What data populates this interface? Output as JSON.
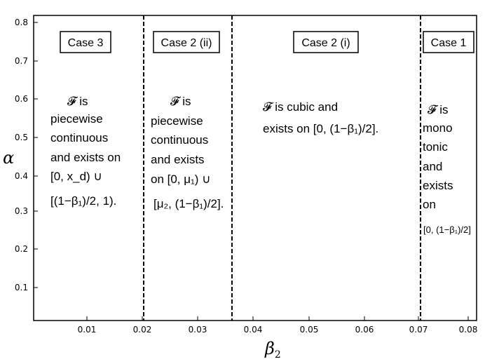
{
  "axes": {
    "y_label": "α",
    "x_label": "β",
    "x_label_sub": "2",
    "x_ticks": [
      "0.01",
      "0.02",
      "0.03",
      "0.04",
      "0.05",
      "0.06",
      "0.07",
      "0.08"
    ],
    "y_ticks": [
      "0.1",
      "0.2",
      "0.3",
      "0.4",
      "0.5",
      "0.6",
      "0.7",
      "0.8"
    ]
  },
  "regions": [
    {
      "case": "Case 3",
      "description": [
        "𝓕  is",
        "piecewise",
        "continuous",
        "and exists on",
        "[0, x_d) ∪",
        "[(1−β₁)/2, 1)."
      ]
    },
    {
      "case": "Case 2 (ii)",
      "description": [
        "𝓕  is",
        "piecewise",
        "continuous",
        "and exists",
        "on [0, μ₁) ∪",
        "[μ₂, (1−β₁)/2]."
      ]
    },
    {
      "case": "Case 2 (i)",
      "description": [
        "𝓕 is cubic and",
        "exists on [0, (1−β₁)/2]."
      ]
    },
    {
      "case": "Case 1",
      "description": [
        "𝓕  is",
        "mono",
        "tonic",
        "and",
        "exists",
        "on",
        "[0, (1−β₁)/2]"
      ]
    }
  ],
  "boundaries": {
    "beta2_values": [
      0.0205,
      0.037,
      0.0708
    ]
  }
}
